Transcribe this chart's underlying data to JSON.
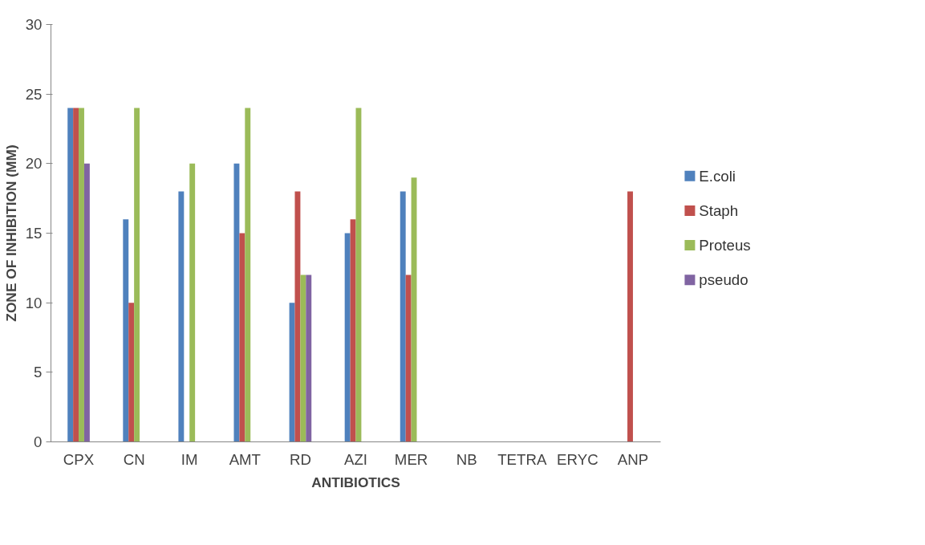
{
  "chart_data": {
    "type": "bar",
    "xlabel": "ANTIBIOTICS",
    "ylabel": "ZONE OF INHIBITION (MM)",
    "categories": [
      "CPX",
      "CN",
      "IM",
      "AMT",
      "RD",
      "AZI",
      "MER",
      "NB",
      "TETRA",
      "ERYC",
      "ANP"
    ],
    "series": [
      {
        "name": "E.coli",
        "color": "#4f81bd",
        "values": [
          24,
          16,
          18,
          20,
          10,
          15,
          18,
          0,
          0,
          0,
          0
        ]
      },
      {
        "name": "Staph",
        "color": "#c0504d",
        "values": [
          24,
          10,
          0,
          15,
          18,
          16,
          12,
          0,
          0,
          0,
          18
        ]
      },
      {
        "name": "Proteus",
        "color": "#9bbb59",
        "values": [
          24,
          24,
          20,
          24,
          12,
          24,
          19,
          0,
          0,
          0,
          0
        ]
      },
      {
        "name": "pseudo",
        "color": "#8064a2",
        "values": [
          20,
          0,
          0,
          0,
          12,
          0,
          0,
          0,
          0,
          0,
          0
        ]
      }
    ],
    "ylim": [
      0,
      30
    ],
    "yticks": [
      0,
      5,
      10,
      15,
      20,
      25,
      30
    ],
    "grid": false,
    "legend": "right"
  }
}
